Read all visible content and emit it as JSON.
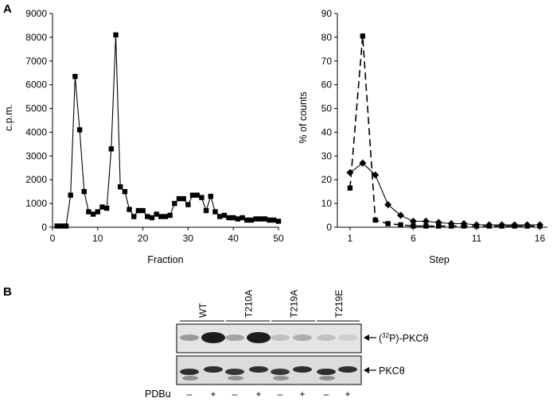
{
  "figure": {
    "panel_a_label": "A",
    "panel_b_label": "B"
  },
  "chart_data": [
    {
      "type": "line",
      "xlabel": "Fraction",
      "ylabel": "c.p.m.",
      "xlim": [
        0,
        50
      ],
      "ylim": [
        0,
        9000
      ],
      "xticks": [
        "0",
        "10",
        "20",
        "30",
        "40",
        "50"
      ],
      "yticks": [
        "0",
        "1000",
        "2000",
        "3000",
        "4000",
        "5000",
        "6000",
        "7000",
        "8000",
        "9000"
      ],
      "grid": false,
      "series": [
        {
          "marker": "square",
          "line": "solid",
          "x": [
            1,
            2,
            3,
            4,
            5,
            6,
            7,
            8,
            9,
            10,
            11,
            12,
            13,
            14,
            15,
            16,
            17,
            18,
            19,
            20,
            21,
            22,
            23,
            24,
            25,
            26,
            27,
            28,
            29,
            30,
            31,
            32,
            33,
            34,
            35,
            36,
            37,
            38,
            39,
            40,
            41,
            42,
            43,
            44,
            45,
            46,
            47,
            48,
            49,
            50
          ],
          "values": [
            50,
            50,
            50,
            1350,
            6350,
            4100,
            1500,
            650,
            550,
            650,
            850,
            800,
            3300,
            8100,
            1700,
            1500,
            750,
            450,
            700,
            700,
            450,
            400,
            550,
            450,
            450,
            500,
            1000,
            1200,
            1200,
            950,
            1350,
            1350,
            1250,
            700,
            1300,
            650,
            450,
            500,
            400,
            400,
            350,
            400,
            300,
            300,
            350,
            350,
            350,
            300,
            300,
            250
          ]
        }
      ]
    },
    {
      "type": "line",
      "xlabel": "Step",
      "ylabel": "% of counts",
      "xlim": [
        0,
        16.6
      ],
      "ylim": [
        0,
        90
      ],
      "xticks": [
        "1",
        "6",
        "11",
        "16"
      ],
      "yticks": [
        "0",
        "10",
        "20",
        "30",
        "40",
        "50",
        "60",
        "70",
        "80",
        "90"
      ],
      "grid": false,
      "series": [
        {
          "marker": "square",
          "line": "dashed",
          "x": [
            1,
            2,
            3,
            4,
            5,
            6,
            7,
            8,
            9,
            10,
            11,
            12,
            13,
            14,
            15,
            16
          ],
          "values": [
            16.5,
            80.5,
            3,
            1.5,
            1,
            0.5,
            0.5,
            0.5,
            0.5,
            0.5,
            0.5,
            0.5,
            0.5,
            0.5,
            0.5,
            0.5
          ]
        },
        {
          "marker": "diamond",
          "line": "solid",
          "x": [
            1,
            2,
            3,
            4,
            5,
            6,
            7,
            8,
            9,
            10,
            11,
            12,
            13,
            14,
            15,
            16
          ],
          "values": [
            23,
            27,
            22,
            9.5,
            5,
            2.5,
            2.5,
            2,
            1.5,
            1.5,
            1,
            1,
            1,
            1,
            1,
            1
          ]
        }
      ]
    }
  ],
  "blot": {
    "groups": [
      "WT",
      "T210A",
      "T219A",
      "T219E"
    ],
    "treatment_label": "PDBu",
    "treatment_signs": [
      "–",
      "+",
      "–",
      "+",
      "–",
      "+",
      "–",
      "+"
    ],
    "band_labels": {
      "top_prefix": "(",
      "top_superscript": "32",
      "top_suffix": "P)-PKCθ",
      "bottom": "PKCθ"
    },
    "top_band_intensity": [
      0.35,
      1.0,
      0.3,
      1.0,
      0.15,
      0.25,
      0.15,
      0.08
    ],
    "bottom_band_intensity": [
      0.9,
      0.9,
      0.85,
      0.9,
      0.85,
      0.9,
      0.9,
      0.9
    ]
  }
}
